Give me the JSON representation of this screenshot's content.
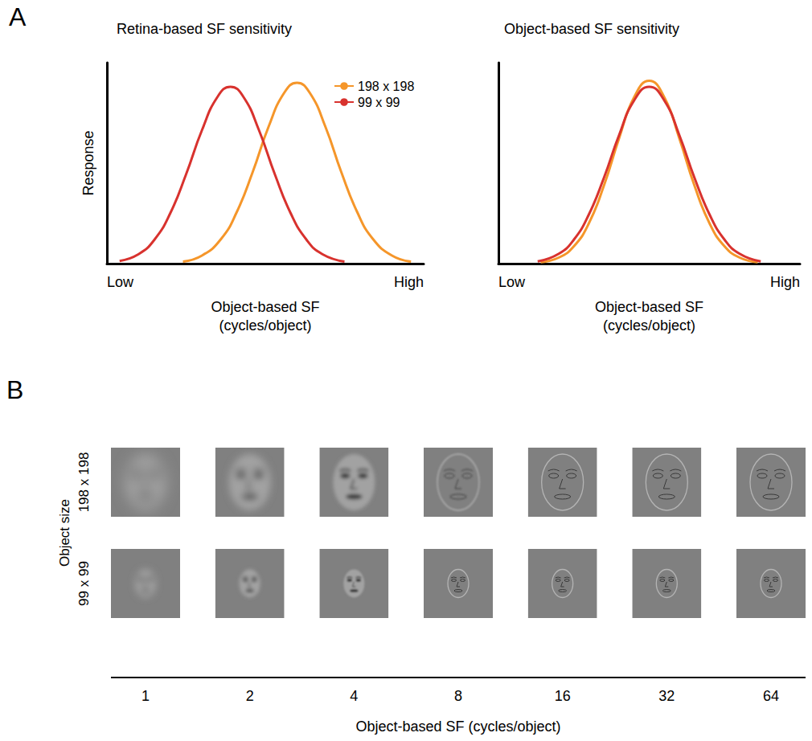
{
  "panel_labels": [
    "A",
    "B"
  ],
  "chart_data": [
    {
      "type": "line",
      "title": "Retina-based SF sensitivity",
      "x_label": "Object-based SF (cycles/object)",
      "y_label": "Response",
      "xlim": [
        0,
        100
      ],
      "xticks": [
        {
          "value": 0,
          "label": "Low"
        },
        {
          "value": 100,
          "label": "High"
        }
      ],
      "ylim": [
        0,
        100
      ],
      "tick_labels": "x",
      "grid": false,
      "legend": "upper right",
      "series": [
        {
          "name": "198 x 198",
          "color": "#f5962a",
          "x": [
            24,
            30,
            36,
            41,
            46,
            51,
            56,
            60,
            64,
            69,
            74,
            79,
            84,
            90,
            96
          ],
          "values": [
            1.0,
            4.0,
            12.2,
            25.7,
            45.5,
            68.0,
            85.1,
            90,
            85.1,
            68.0,
            45.5,
            25.7,
            12.2,
            4.0,
            1.0
          ]
        },
        {
          "name": "99 x 99",
          "color": "#d8322e",
          "x": [
            4,
            10,
            15,
            20,
            25,
            30,
            35,
            39,
            43,
            48,
            53,
            58,
            63,
            68,
            75
          ],
          "values": [
            1.3,
            4.7,
            11.9,
            25.1,
            44.5,
            66.4,
            83.2,
            88,
            83.2,
            66.4,
            44.5,
            25.1,
            11.9,
            4.7,
            1.0
          ]
        }
      ]
    },
    {
      "type": "line",
      "title": "Object-based SF sensitivity",
      "x_label": "Object-based SF (cycles/object)",
      "xlim": [
        0,
        100
      ],
      "xticks": [
        {
          "value": 0,
          "label": "Low"
        },
        {
          "value": 100,
          "label": "High"
        }
      ],
      "ylim": [
        0,
        100
      ],
      "tick_labels": "x",
      "grid": false,
      "series": [
        {
          "name": "198 x 198",
          "color": "#f5962a",
          "x": [
            14,
            20,
            25,
            30,
            35,
            40,
            45,
            50,
            55,
            60,
            65,
            70,
            75,
            80,
            86
          ],
          "values": [
            0.7,
            3.0,
            8.6,
            20.1,
            38.9,
            62.3,
            82.8,
            91,
            82.8,
            62.3,
            38.9,
            20.1,
            8.6,
            3.0,
            0.7
          ]
        },
        {
          "name": "99 x 99",
          "color": "#d8322e",
          "x": [
            13,
            20,
            25,
            30,
            35,
            40,
            45,
            50,
            55,
            60,
            65,
            70,
            75,
            80,
            87
          ],
          "values": [
            1.1,
            4.9,
            11.9,
            24.5,
            42.8,
            63.9,
            81.2,
            88,
            81.2,
            63.9,
            42.8,
            24.5,
            11.9,
            4.9,
            1.1
          ]
        }
      ]
    }
  ],
  "panel_b": {
    "row_axis_title": "Object size",
    "rows": [
      {
        "label": "198 x 198",
        "size": 198
      },
      {
        "label": "99 x 99",
        "size": 99
      }
    ],
    "columns": [
      1,
      2,
      4,
      8,
      16,
      32,
      64
    ],
    "axis_title": "Object-based SF (cycles/object)"
  }
}
